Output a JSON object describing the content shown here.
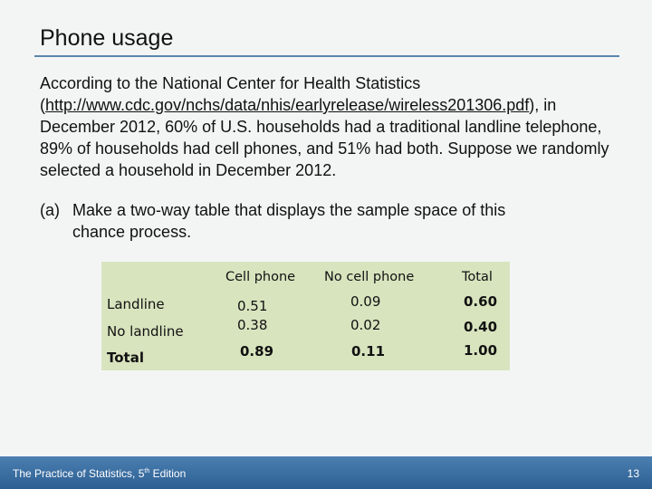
{
  "slide": {
    "title": "Phone usage",
    "paragraph_pre": "According to the National Center for Health Statistics (",
    "link_text": "http://www.cdc.gov/nchs/data/nhis/earlyrelease/wireless201306.pdf",
    "paragraph_post": "), in December 2012, 60% of U.S. households had a traditional landline telephone, 89% of households had cell phones, and 51% had both. Suppose we randomly selected a household in December 2012.",
    "question_label": "(a)",
    "question_line1": "Make a two-way table that displays the sample space of this",
    "question_line2": "chance process."
  },
  "table": {
    "col_headers": [
      "Cell phone",
      "No cell phone",
      "Total"
    ],
    "rows": [
      {
        "label": "Landline",
        "cells": [
          "0.51",
          "0.09",
          "0.60"
        ]
      },
      {
        "label": "No landline",
        "cells": [
          "0.38",
          "0.02",
          "0.40"
        ]
      },
      {
        "label": "Total",
        "cells": [
          "0.89",
          "0.11",
          "1.00"
        ]
      }
    ],
    "background_color": "#d8e4be"
  },
  "footer": {
    "book_title_pre": "The Practice of Statistics, 5",
    "book_title_sup": "th",
    "book_title_post": " Edition",
    "page_number": "13",
    "bar_color": "#3a6ea3"
  }
}
